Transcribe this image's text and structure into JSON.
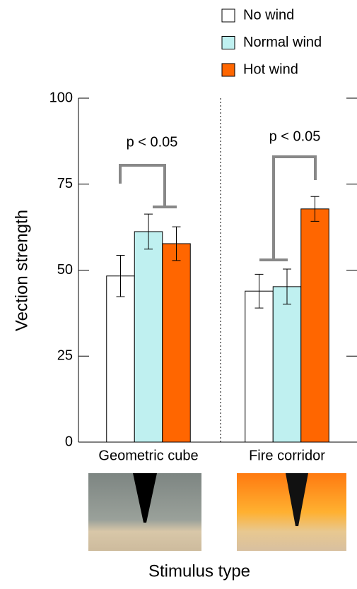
{
  "chart_data": {
    "type": "bar",
    "categories": [
      "Geometric cube",
      "Fire corridor"
    ],
    "series": [
      {
        "name": "No wind",
        "color": "#ffffff",
        "values": [
          48.3,
          43.9
        ],
        "errors": [
          6.0,
          4.9
        ]
      },
      {
        "name": "Normal wind",
        "color": "#bff0f0",
        "values": [
          61.2,
          45.2
        ],
        "errors": [
          5.1,
          5.1
        ]
      },
      {
        "name": "Hot wind",
        "color": "#ff6600",
        "values": [
          57.7,
          67.8
        ],
        "errors": [
          4.9,
          3.6
        ]
      }
    ],
    "ylabel": "Vection strength",
    "xlabel": "Stimulus type",
    "annotations": [
      "p < 0.05",
      "p < 0.05"
    ],
    "ylim": [
      0,
      100
    ],
    "yticks": [
      0,
      25,
      50,
      75,
      100
    ]
  }
}
